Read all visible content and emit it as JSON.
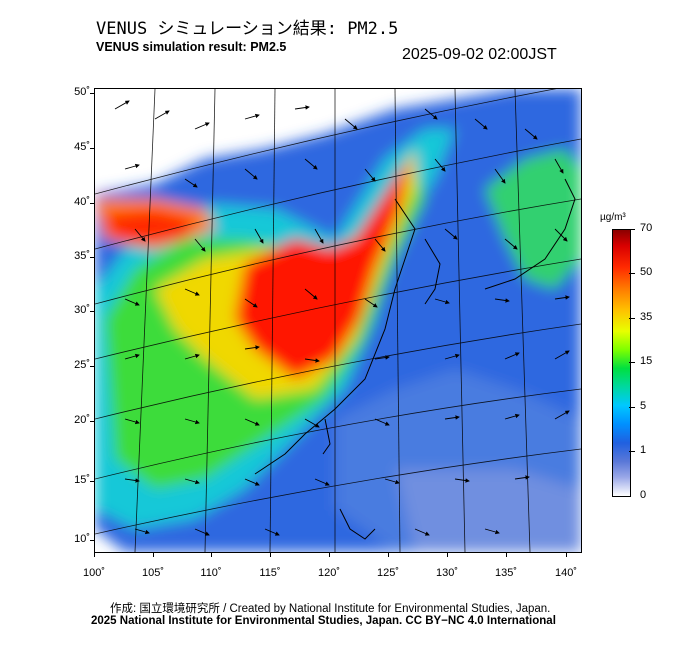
{
  "header": {
    "title_jp": "VENUS シミュレーション結果: PM2.5",
    "title_en": "VENUS simulation result: PM2.5",
    "timestamp": "2025-09-02 02:00JST"
  },
  "map": {
    "lat_labels": [
      "50˚",
      "45˚",
      "40˚",
      "35˚",
      "30˚",
      "25˚",
      "20˚",
      "15˚",
      "10˚"
    ],
    "lon_labels": [
      "100˚",
      "105˚",
      "110˚",
      "115˚",
      "120˚",
      "125˚",
      "130˚",
      "135˚",
      "140˚"
    ]
  },
  "colorbar": {
    "unit": "µg/m³",
    "labels": [
      "70",
      "50",
      "35",
      "15",
      "5",
      "1",
      "0"
    ]
  },
  "footer": {
    "credit_line1": "作成: 国立環境研究所 / Created by National Institute for Environmental Studies, Japan.",
    "credit_line2": "2025 National Institute for Environmental Studies, Japan. CC BY−NC 4.0 International"
  }
}
